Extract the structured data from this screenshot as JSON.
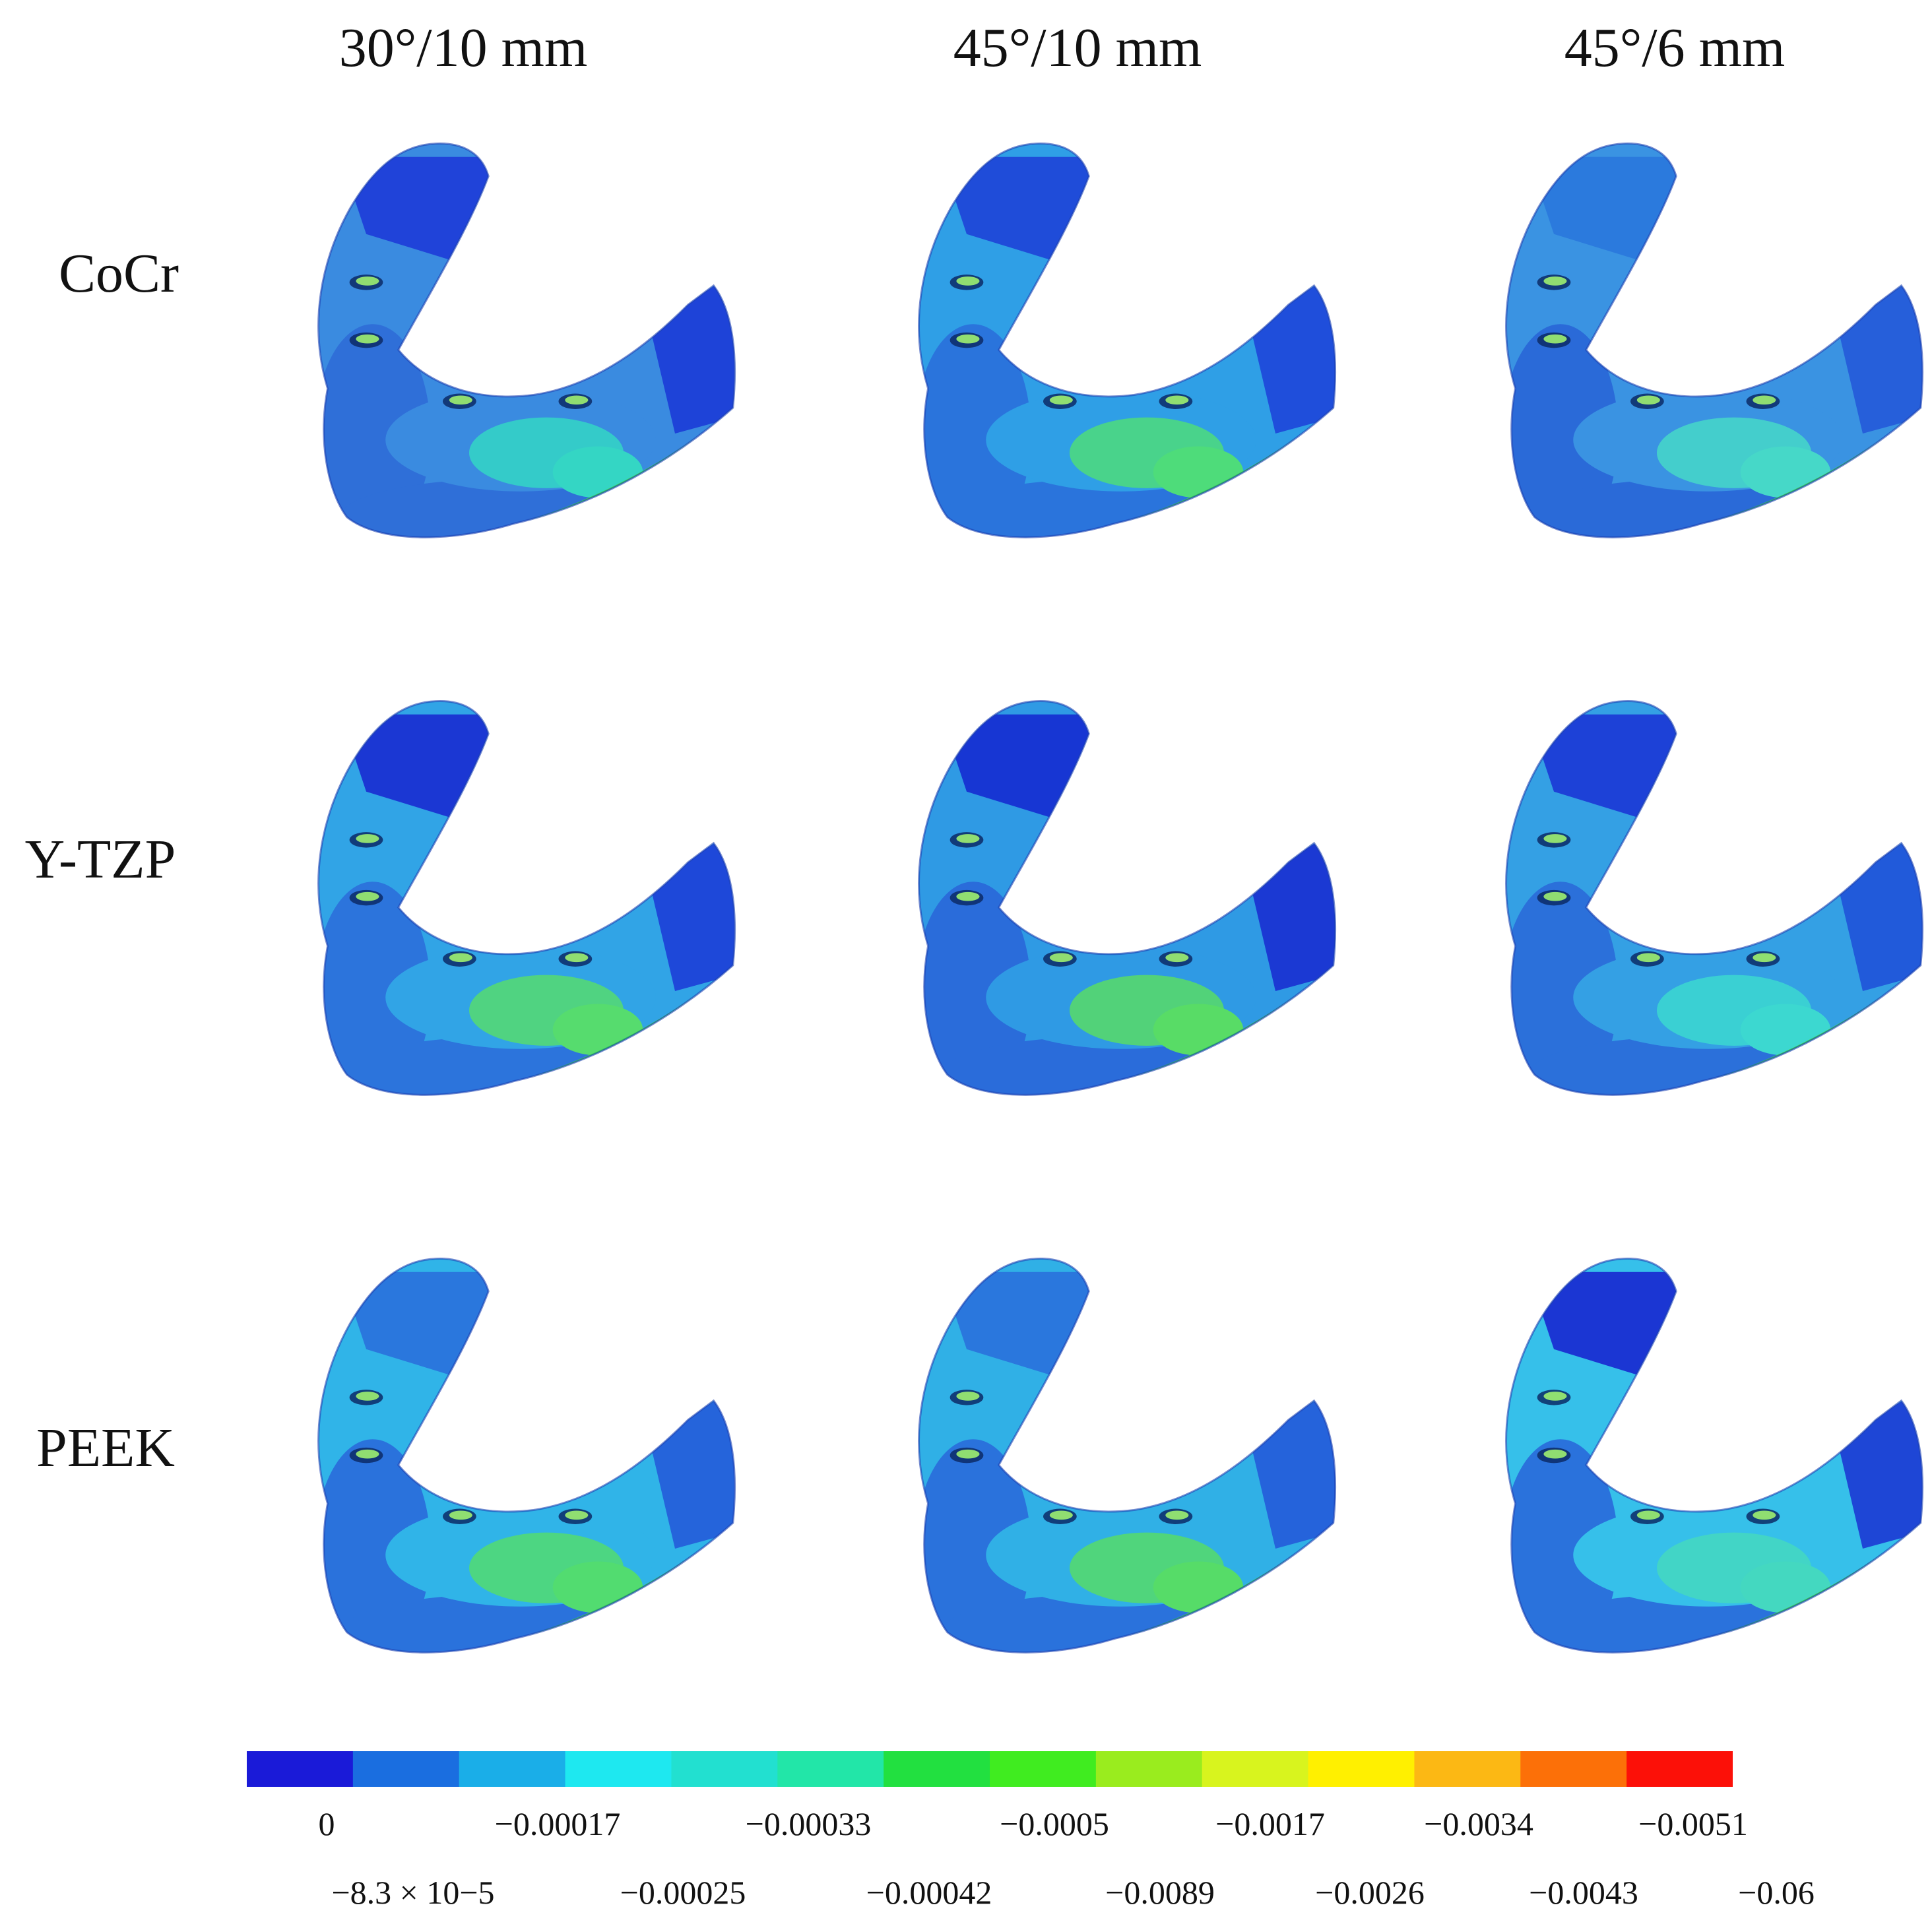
{
  "columns": [
    "30°/10 mm",
    "45°/10 mm",
    "45°/6 mm"
  ],
  "rows": [
    "CoCr",
    "Y-TZP",
    "PEEK"
  ],
  "panels": [
    [
      {
        "mid": "#3a8be0",
        "low": "#2f6fd8",
        "deep": "#1a36d6",
        "green": "#34d6c4",
        "top": "#1f3fd8"
      },
      {
        "mid": "#2f9fe6",
        "low": "#2a74dc",
        "deep": "#1c3fd8",
        "green": "#4edc7a",
        "top": "#1f48d8"
      },
      {
        "mid": "#3a93e2",
        "low": "#2a6ad8",
        "deep": "#2356d8",
        "green": "#46d8c8",
        "top": "#2a78dc"
      }
    ],
    [
      {
        "mid": "#31a4e6",
        "low": "#2c74dc",
        "deep": "#1b38d6",
        "green": "#56dc6e",
        "top": "#1a32d2"
      },
      {
        "mid": "#2f9ae4",
        "low": "#2a6cda",
        "deep": "#1828d0",
        "green": "#58dc66",
        "top": "#1630d2"
      },
      {
        "mid": "#34a0e4",
        "low": "#2b70da",
        "deep": "#1f4ed8",
        "green": "#3cd8d0",
        "top": "#1c3cd6"
      }
    ],
    [
      {
        "mid": "#30b4e8",
        "low": "#2a72dc",
        "deep": "#2356d8",
        "green": "#52dc70",
        "top": "#2a74dc"
      },
      {
        "mid": "#30b0e6",
        "low": "#2a72dc",
        "deep": "#2356d8",
        "green": "#56dc68",
        "top": "#2a74dc"
      },
      {
        "mid": "#36c0ea",
        "low": "#2a72dc",
        "deep": "#1a30d2",
        "green": "#44d8c0",
        "top": "#1a2ed2"
      }
    ]
  ],
  "colorbar": {
    "colors": [
      "#1a1ad8",
      "#1a6ee0",
      "#1aaee8",
      "#1ee8f0",
      "#22e0d0",
      "#22e6a8",
      "#22e040",
      "#40ec20",
      "#9aec1e",
      "#d8f41e",
      "#fff000",
      "#fcb814",
      "#fc7008",
      "#fc1008"
    ],
    "upper_labels": [
      "0",
      "−0.00017",
      "−0.00033",
      "−0.0005",
      "−0.0017",
      "−0.0034",
      "−0.0051"
    ],
    "lower_labels": [
      "−8.3 × 10−5",
      "−0.00025",
      "−0.00042",
      "−0.0089",
      "−0.0026",
      "−0.0043",
      "−0.06"
    ]
  }
}
